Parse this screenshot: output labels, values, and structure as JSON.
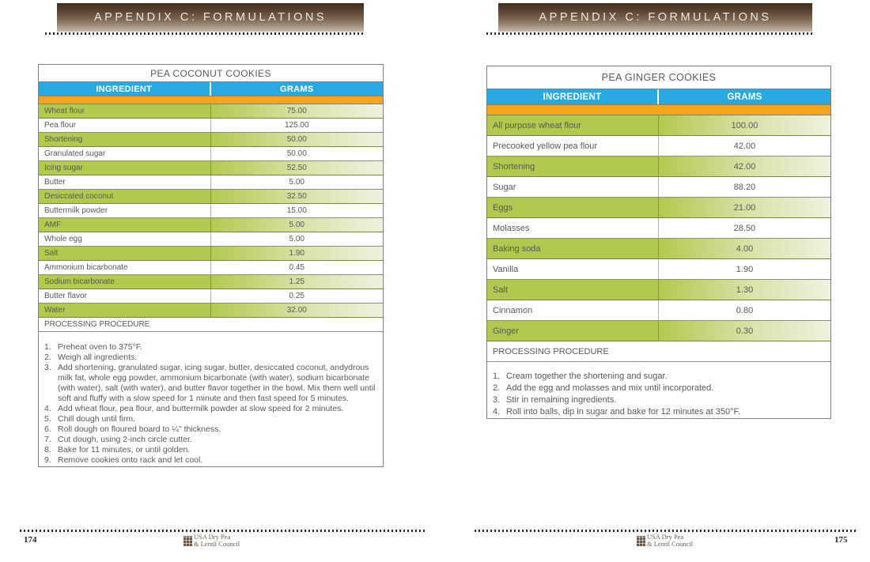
{
  "header": {
    "title": "APPENDIX C: FORMULATIONS"
  },
  "colors": {
    "header_blue": "#29A9E1",
    "band_orange": "#F6A41C",
    "row_green": "#B2C94F",
    "banner_brown_dark": "#3E2B1F",
    "banner_brown_light": "#C2B4A7"
  },
  "left_page": {
    "table": {
      "title": "PEA COCONUT COOKIES",
      "columns": [
        "INGREDIENT",
        "GRAMS"
      ],
      "rows": [
        {
          "ingredient": "Wheat flour",
          "grams": "75.00"
        },
        {
          "ingredient": "Pea flour",
          "grams": "125.00"
        },
        {
          "ingredient": "Shortening",
          "grams": "50.00"
        },
        {
          "ingredient": "Granulated sugar",
          "grams": "50.00"
        },
        {
          "ingredient": "Icing sugar",
          "grams": "52.50"
        },
        {
          "ingredient": "Butter",
          "grams": "5.00"
        },
        {
          "ingredient": "Desiccated coconut",
          "grams": "32.50"
        },
        {
          "ingredient": "Buttermilk powder",
          "grams": "15.00"
        },
        {
          "ingredient": "AMF",
          "grams": "5.00"
        },
        {
          "ingredient": "Whole egg",
          "grams": "5.00"
        },
        {
          "ingredient": "Salt",
          "grams": "1.90"
        },
        {
          "ingredient": "Ammonium bicarbonate",
          "grams": "0.45"
        },
        {
          "ingredient": "Sodium bicarbonate",
          "grams": "1.25"
        },
        {
          "ingredient": "Butter flavor",
          "grams": "0.25"
        },
        {
          "ingredient": "Water",
          "grams": "32.00"
        }
      ],
      "procedure_label": "PROCESSING PROCEDURE",
      "steps": [
        {
          "num": "1.",
          "text": "Preheat oven to 375°F."
        },
        {
          "num": "2.",
          "text": "Weigh all ingredients."
        },
        {
          "num": "3.",
          "text": "Add shortening, granulated sugar, icing sugar, butter, desiccated coconut, andydrous milk fat, whole egg powder, ammonium bicarbonate (with water), sodium bicarbonate (with water), salt (with water), and butter flavor together in the bowl. Mix them well until soft and fluffy with a slow speed for 1 minute and then fast speed for 5 minutes."
        },
        {
          "num": "4.",
          "text": "Add wheat flour, pea flour, and buttermilk powder at slow speed for 2 minutes."
        },
        {
          "num": "5.",
          "text": "Chill dough until firm."
        },
        {
          "num": "6.",
          "text": "Roll dough on floured board to ¼\" thickness."
        },
        {
          "num": "7.",
          "text": "Cut dough, using 2-inch circle cutter."
        },
        {
          "num": "8.",
          "text": "Bake for 11 minutes, or until golden."
        },
        {
          "num": "9.",
          "text": "Remove cookies onto rack and let cool."
        }
      ]
    },
    "footer": {
      "page_number": "174",
      "logo_line1": "USA Dry Pea",
      "logo_line2": "& Lentil Council"
    }
  },
  "right_page": {
    "table": {
      "title": "PEA GINGER COOKIES",
      "columns": [
        "INGREDIENT",
        "GRAMS"
      ],
      "rows": [
        {
          "ingredient": "All purpose wheat flour",
          "grams": "100.00"
        },
        {
          "ingredient": "Precooked yellow pea flour",
          "grams": "42.00"
        },
        {
          "ingredient": "Shortening",
          "grams": "42.00"
        },
        {
          "ingredient": "Sugar",
          "grams": "88.20"
        },
        {
          "ingredient": "Eggs",
          "grams": "21.00"
        },
        {
          "ingredient": "Molasses",
          "grams": "28.50"
        },
        {
          "ingredient": "Baking soda",
          "grams": "4.00"
        },
        {
          "ingredient": "Vanilla",
          "grams": "1.90"
        },
        {
          "ingredient": "Salt",
          "grams": "1.30"
        },
        {
          "ingredient": "Cinnamon",
          "grams": "0.80"
        },
        {
          "ingredient": "Ginger",
          "grams": "0.30"
        }
      ],
      "procedure_label": "PROCESSING PROCEDURE",
      "steps": [
        {
          "num": "1.",
          "text": "Cream together the shortening and sugar."
        },
        {
          "num": "2.",
          "text": "Add the egg and molasses and mix until incorporated."
        },
        {
          "num": "3.",
          "text": "Stir in remaining ingredients."
        },
        {
          "num": "4.",
          "text": "Roll into balls, dip in sugar and bake for 12 minutes at 350°F."
        }
      ]
    },
    "footer": {
      "page_number": "175",
      "logo_line1": "USA Dry Pea",
      "logo_line2": "& Lentil Council"
    }
  }
}
